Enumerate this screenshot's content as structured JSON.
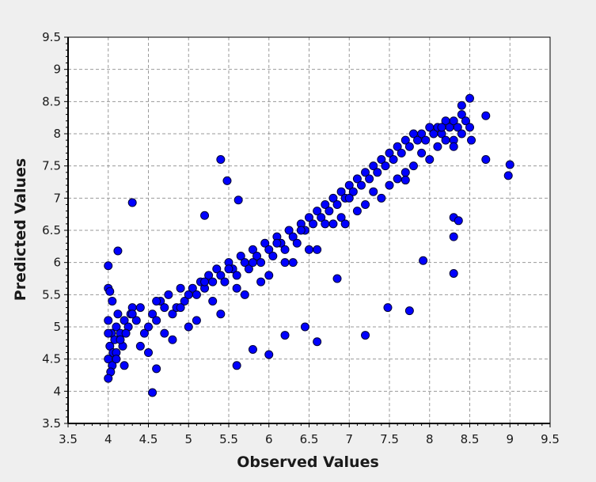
{
  "chart_data": {
    "type": "scatter",
    "title": "",
    "xlabel": "Observed Values",
    "ylabel": "Predicted Values",
    "xlim": [
      3.5,
      9.5
    ],
    "ylim": [
      3.5,
      9.5
    ],
    "x_ticks": [
      "3.5",
      "4",
      "4.5",
      "5",
      "5.5",
      "6",
      "6.5",
      "7",
      "7.5",
      "8",
      "8.5",
      "9",
      "9.5"
    ],
    "y_ticks": [
      "3.5",
      "4",
      "4.5",
      "5",
      "5.5",
      "6",
      "6.5",
      "7",
      "7.5",
      "8",
      "8.5",
      "9",
      "9.5"
    ],
    "grid": true,
    "legend": "none",
    "marker_color": "#0000ff",
    "marker_edge_color": "#000033",
    "background_color": "#ffffff",
    "page_color": "#efefef",
    "series": [
      {
        "x": [
          4.0,
          4.02,
          4.04,
          4.0,
          4.05,
          4.08,
          4.1,
          4.03,
          4.06,
          4.12,
          4.15,
          4.18,
          4.2,
          4.25,
          4.3,
          4.05,
          4.1,
          4.15,
          4.22,
          4.28,
          4.35,
          4.4,
          4.45,
          4.5,
          4.55,
          4.6,
          4.65,
          4.7,
          4.75,
          4.8,
          4.85,
          4.9,
          4.95,
          5.0,
          5.05,
          5.1,
          5.15,
          5.2,
          5.25,
          5.3,
          5.35,
          5.4,
          5.45,
          5.5,
          5.55,
          5.6,
          5.65,
          5.7,
          5.75,
          5.8,
          5.85,
          5.9,
          5.95,
          6.0,
          6.05,
          6.1,
          6.15,
          6.2,
          6.25,
          6.3,
          6.35,
          6.4,
          6.45,
          6.5,
          6.55,
          6.6,
          6.65,
          6.7,
          6.75,
          6.8,
          6.85,
          6.9,
          6.95,
          7.0,
          7.05,
          7.1,
          7.15,
          7.2,
          7.25,
          7.3,
          7.35,
          7.4,
          7.45,
          7.5,
          7.55,
          7.6,
          7.65,
          7.7,
          7.75,
          7.8,
          7.85,
          7.9,
          7.95,
          8.0,
          8.05,
          8.1,
          8.15,
          8.2,
          8.25,
          8.3,
          8.35,
          8.4,
          8.45,
          8.5,
          4.0,
          4.3,
          4.6,
          4.9,
          5.2,
          5.5,
          5.8,
          6.1,
          6.4,
          6.7,
          7.0,
          7.3,
          7.6,
          7.9,
          8.2,
          4.1,
          4.4,
          4.7,
          5.0,
          5.3,
          5.6,
          5.9,
          6.2,
          6.5,
          6.8,
          7.1,
          7.4,
          7.7,
          8.0,
          8.3,
          4.2,
          4.5,
          4.8,
          5.1,
          5.4,
          5.7,
          6.0,
          6.3,
          6.6,
          6.9,
          7.2,
          7.5,
          7.8,
          8.1,
          8.4,
          4.0,
          4.0,
          4.0,
          4.02,
          4.3,
          4.12,
          4.55,
          4.6,
          5.4,
          5.48,
          5.62,
          5.2,
          6.95,
          8.5,
          8.7,
          8.7,
          9.0,
          8.98,
          8.3,
          8.3,
          8.3,
          8.36,
          8.3,
          7.7,
          7.48,
          7.75,
          7.92,
          6.0,
          6.6,
          6.85,
          6.2,
          6.45,
          7.2,
          5.8,
          5.6,
          8.15,
          8.4,
          8.52
        ],
        "y": [
          4.5,
          4.7,
          4.9,
          5.1,
          4.4,
          4.8,
          5.0,
          4.3,
          4.6,
          5.2,
          4.9,
          4.7,
          5.1,
          5.0,
          5.3,
          5.4,
          4.6,
          4.8,
          4.9,
          5.2,
          5.1,
          5.3,
          4.9,
          5.0,
          5.2,
          5.1,
          5.4,
          5.3,
          5.5,
          5.2,
          5.3,
          5.6,
          5.4,
          5.5,
          5.6,
          5.5,
          5.7,
          5.6,
          5.8,
          5.7,
          5.9,
          5.8,
          5.7,
          6.0,
          5.9,
          5.8,
          6.1,
          6.0,
          5.9,
          6.2,
          6.1,
          6.0,
          6.3,
          6.2,
          6.1,
          6.4,
          6.3,
          6.2,
          6.5,
          6.4,
          6.3,
          6.6,
          6.5,
          6.7,
          6.6,
          6.8,
          6.7,
          6.9,
          6.8,
          7.0,
          6.9,
          7.1,
          7.0,
          7.2,
          7.1,
          7.3,
          7.2,
          7.4,
          7.3,
          7.5,
          7.4,
          7.6,
          7.5,
          7.7,
          7.6,
          7.8,
          7.7,
          7.9,
          7.8,
          8.0,
          7.9,
          8.0,
          7.9,
          8.1,
          8.0,
          8.1,
          8.0,
          8.2,
          8.1,
          8.2,
          8.1,
          8.3,
          8.2,
          8.1,
          4.9,
          5.2,
          5.4,
          5.3,
          5.7,
          5.9,
          6.0,
          6.3,
          6.5,
          6.6,
          7.0,
          7.1,
          7.3,
          7.7,
          7.9,
          4.5,
          4.7,
          4.9,
          5.0,
          5.4,
          5.6,
          5.7,
          6.0,
          6.2,
          6.6,
          6.8,
          7.0,
          7.4,
          7.6,
          7.9,
          4.4,
          4.6,
          4.8,
          5.1,
          5.2,
          5.5,
          5.8,
          6.0,
          6.2,
          6.7,
          6.9,
          7.2,
          7.5,
          7.8,
          8.0,
          4.2,
          5.6,
          5.95,
          5.55,
          6.93,
          6.18,
          3.98,
          4.35,
          7.6,
          7.27,
          6.97,
          6.73,
          6.6,
          8.55,
          8.28,
          7.6,
          7.52,
          7.35,
          6.7,
          6.4,
          5.83,
          6.65,
          7.8,
          7.28,
          5.3,
          5.25,
          6.03,
          4.57,
          4.77,
          5.75,
          4.87,
          5.0,
          4.87,
          4.65,
          4.4,
          8.1,
          8.44,
          7.9
        ]
      }
    ]
  }
}
